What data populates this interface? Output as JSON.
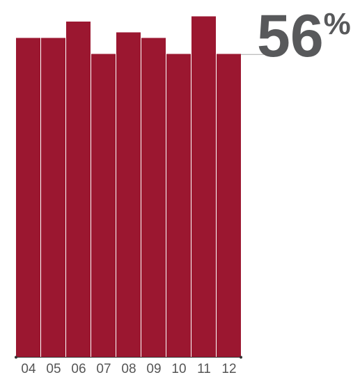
{
  "chart_data": {
    "type": "bar",
    "categories": [
      "04",
      "05",
      "06",
      "07",
      "08",
      "09",
      "10",
      "11",
      "12"
    ],
    "values": [
      59,
      59,
      62,
      56,
      60,
      59,
      56,
      63,
      56
    ],
    "ylim": [
      0,
      66
    ],
    "grid": false,
    "bar_color": "#9b1730",
    "highlight": {
      "category": "12",
      "value_number": "56",
      "value_unit": "%"
    },
    "annotation_color": "#58595b",
    "leader_line_color": "#aaaaaa",
    "axis_color": "#333333"
  }
}
